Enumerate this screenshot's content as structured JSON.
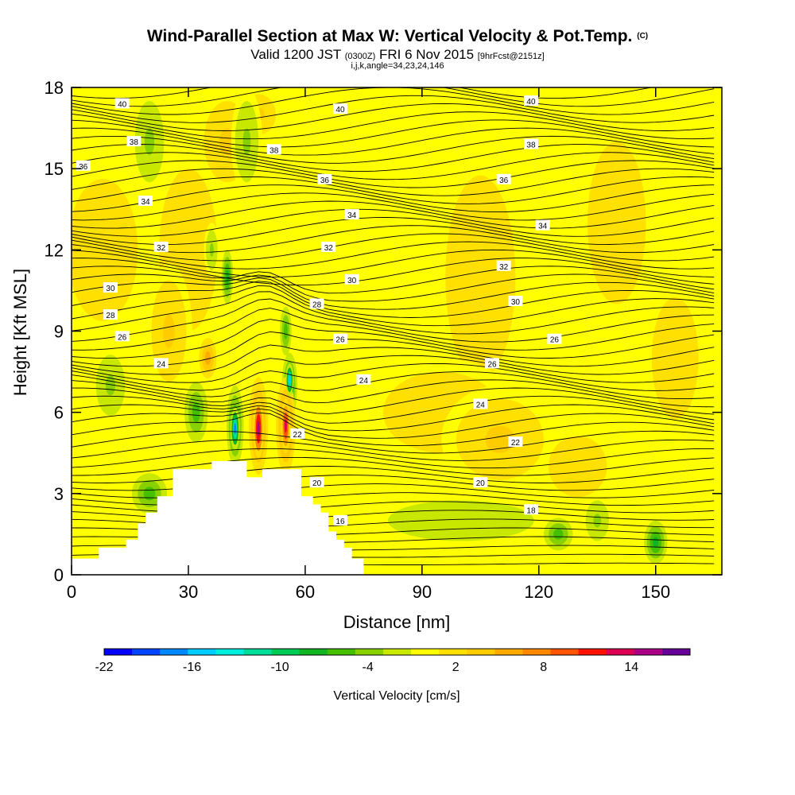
{
  "header": {
    "title": "Wind-Parallel Section at Max W: Vertical Velocity & Pot.Temp.",
    "copyright": "(C)",
    "subtitle_main_1": "Valid 1200 JST",
    "subtitle_small_1": "(0300Z)",
    "subtitle_main_2": "FRI 6 Nov 2015",
    "subtitle_small_2": "[9hrFcst@2151z]",
    "params": "i,j,k,angle=34,23,24,146"
  },
  "colors": {
    "background": "#ffff00",
    "terrain": "#ffffff",
    "contour": "#000000"
  },
  "chart_data": {
    "type": "heatmap",
    "xlabel": "Distance [nm]",
    "ylabel": "Height [Kft MSL]",
    "xlim": [
      0,
      167
    ],
    "ylim": [
      0,
      18
    ],
    "x_ticks": [
      0,
      30,
      60,
      90,
      120,
      150
    ],
    "y_ticks": [
      0,
      3,
      6,
      9,
      12,
      15,
      18
    ],
    "grid": false,
    "colorbar": {
      "label": "Vertical Velocity [cm/s]",
      "tick_labels": [
        "-22",
        "-16",
        "-10",
        "-4",
        "2",
        "8",
        "14"
      ],
      "tick_values": [
        -22,
        -16,
        -10,
        -4,
        2,
        8,
        14
      ],
      "range": [
        -22,
        18
      ],
      "step": 2,
      "colors": [
        "#0000ff",
        "#0044ff",
        "#0088ff",
        "#00ccff",
        "#00eedd",
        "#00dd99",
        "#00cc55",
        "#11b422",
        "#44c000",
        "#88d000",
        "#c8e800",
        "#ffff00",
        "#ffe000",
        "#ffcc00",
        "#ffaa00",
        "#ff8800",
        "#ff5500",
        "#ff1100",
        "#dd0055",
        "#aa0088",
        "#660099"
      ]
    },
    "potential_temperature_contour_labels": [
      {
        "x": 13,
        "y": 17.4,
        "label": "40"
      },
      {
        "x": 69,
        "y": 17.2,
        "label": "40"
      },
      {
        "x": 118,
        "y": 17.5,
        "label": "40"
      },
      {
        "x": 16,
        "y": 16.0,
        "label": "38"
      },
      {
        "x": 52,
        "y": 15.7,
        "label": "38"
      },
      {
        "x": 118,
        "y": 15.9,
        "label": "38"
      },
      {
        "x": 3,
        "y": 15.1,
        "label": "36"
      },
      {
        "x": 65,
        "y": 14.6,
        "label": "36"
      },
      {
        "x": 111,
        "y": 14.6,
        "label": "36"
      },
      {
        "x": 19,
        "y": 13.8,
        "label": "34"
      },
      {
        "x": 72,
        "y": 13.3,
        "label": "34"
      },
      {
        "x": 121,
        "y": 12.9,
        "label": "34"
      },
      {
        "x": 23,
        "y": 12.1,
        "label": "32"
      },
      {
        "x": 66,
        "y": 12.1,
        "label": "32"
      },
      {
        "x": 111,
        "y": 11.4,
        "label": "32"
      },
      {
        "x": 10,
        "y": 10.6,
        "label": "30"
      },
      {
        "x": 72,
        "y": 10.9,
        "label": "30"
      },
      {
        "x": 114,
        "y": 10.1,
        "label": "30"
      },
      {
        "x": 10,
        "y": 9.6,
        "label": "28"
      },
      {
        "x": 63,
        "y": 10.0,
        "label": "28"
      },
      {
        "x": 13,
        "y": 8.8,
        "label": "26"
      },
      {
        "x": 69,
        "y": 8.7,
        "label": "26"
      },
      {
        "x": 124,
        "y": 8.7,
        "label": "26"
      },
      {
        "x": 108,
        "y": 7.8,
        "label": "26"
      },
      {
        "x": 23,
        "y": 7.8,
        "label": "24"
      },
      {
        "x": 75,
        "y": 7.2,
        "label": "24"
      },
      {
        "x": 105,
        "y": 6.3,
        "label": "24"
      },
      {
        "x": 114,
        "y": 4.9,
        "label": "22"
      },
      {
        "x": 58,
        "y": 5.2,
        "label": "22"
      },
      {
        "x": 63,
        "y": 3.4,
        "label": "20"
      },
      {
        "x": 105,
        "y": 3.4,
        "label": "20"
      },
      {
        "x": 118,
        "y": 2.4,
        "label": "18"
      },
      {
        "x": 69,
        "y": 2.0,
        "label": "16"
      }
    ],
    "terrain_profile": [
      [
        0,
        0.6
      ],
      [
        7,
        0.6
      ],
      [
        7,
        1.0
      ],
      [
        14,
        1.0
      ],
      [
        14,
        1.3
      ],
      [
        17,
        1.3
      ],
      [
        17,
        1.9
      ],
      [
        19,
        1.9
      ],
      [
        19,
        2.3
      ],
      [
        22,
        2.3
      ],
      [
        22,
        2.9
      ],
      [
        26,
        2.9
      ],
      [
        26,
        3.9
      ],
      [
        36,
        3.9
      ],
      [
        36,
        4.2
      ],
      [
        45,
        4.2
      ],
      [
        45,
        3.6
      ],
      [
        49,
        3.6
      ],
      [
        49,
        3.9
      ],
      [
        59,
        3.9
      ],
      [
        59,
        2.9
      ],
      [
        62,
        2.9
      ],
      [
        62,
        2.6
      ],
      [
        64,
        2.6
      ],
      [
        64,
        2.3
      ],
      [
        66,
        2.3
      ],
      [
        66,
        1.6
      ],
      [
        68,
        1.6
      ],
      [
        68,
        1.3
      ],
      [
        70,
        1.3
      ],
      [
        70,
        1.0
      ],
      [
        72,
        1.0
      ],
      [
        72,
        0.6
      ],
      [
        75,
        0.6
      ],
      [
        75,
        0
      ]
    ]
  }
}
